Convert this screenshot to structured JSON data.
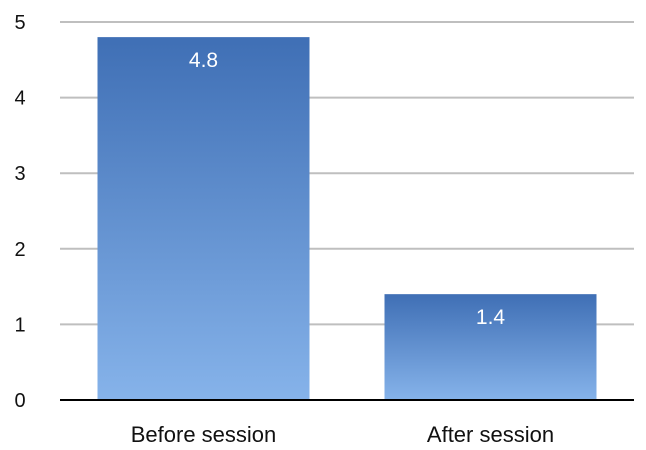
{
  "chart_data": {
    "type": "bar",
    "categories": [
      "Before session",
      "After session"
    ],
    "values": [
      4.8,
      1.4
    ],
    "data_labels": [
      "4.8",
      "1.4"
    ],
    "ylim": [
      0,
      5
    ],
    "yticks": [
      "0",
      "1",
      "2",
      "3",
      "4",
      "5"
    ],
    "grid": true,
    "legend": "none",
    "colors": {
      "bar_top": "#3f6fb5",
      "bar_bottom": "#86b3ea",
      "grid": "#bfbfbf",
      "axis": "#000000"
    }
  }
}
